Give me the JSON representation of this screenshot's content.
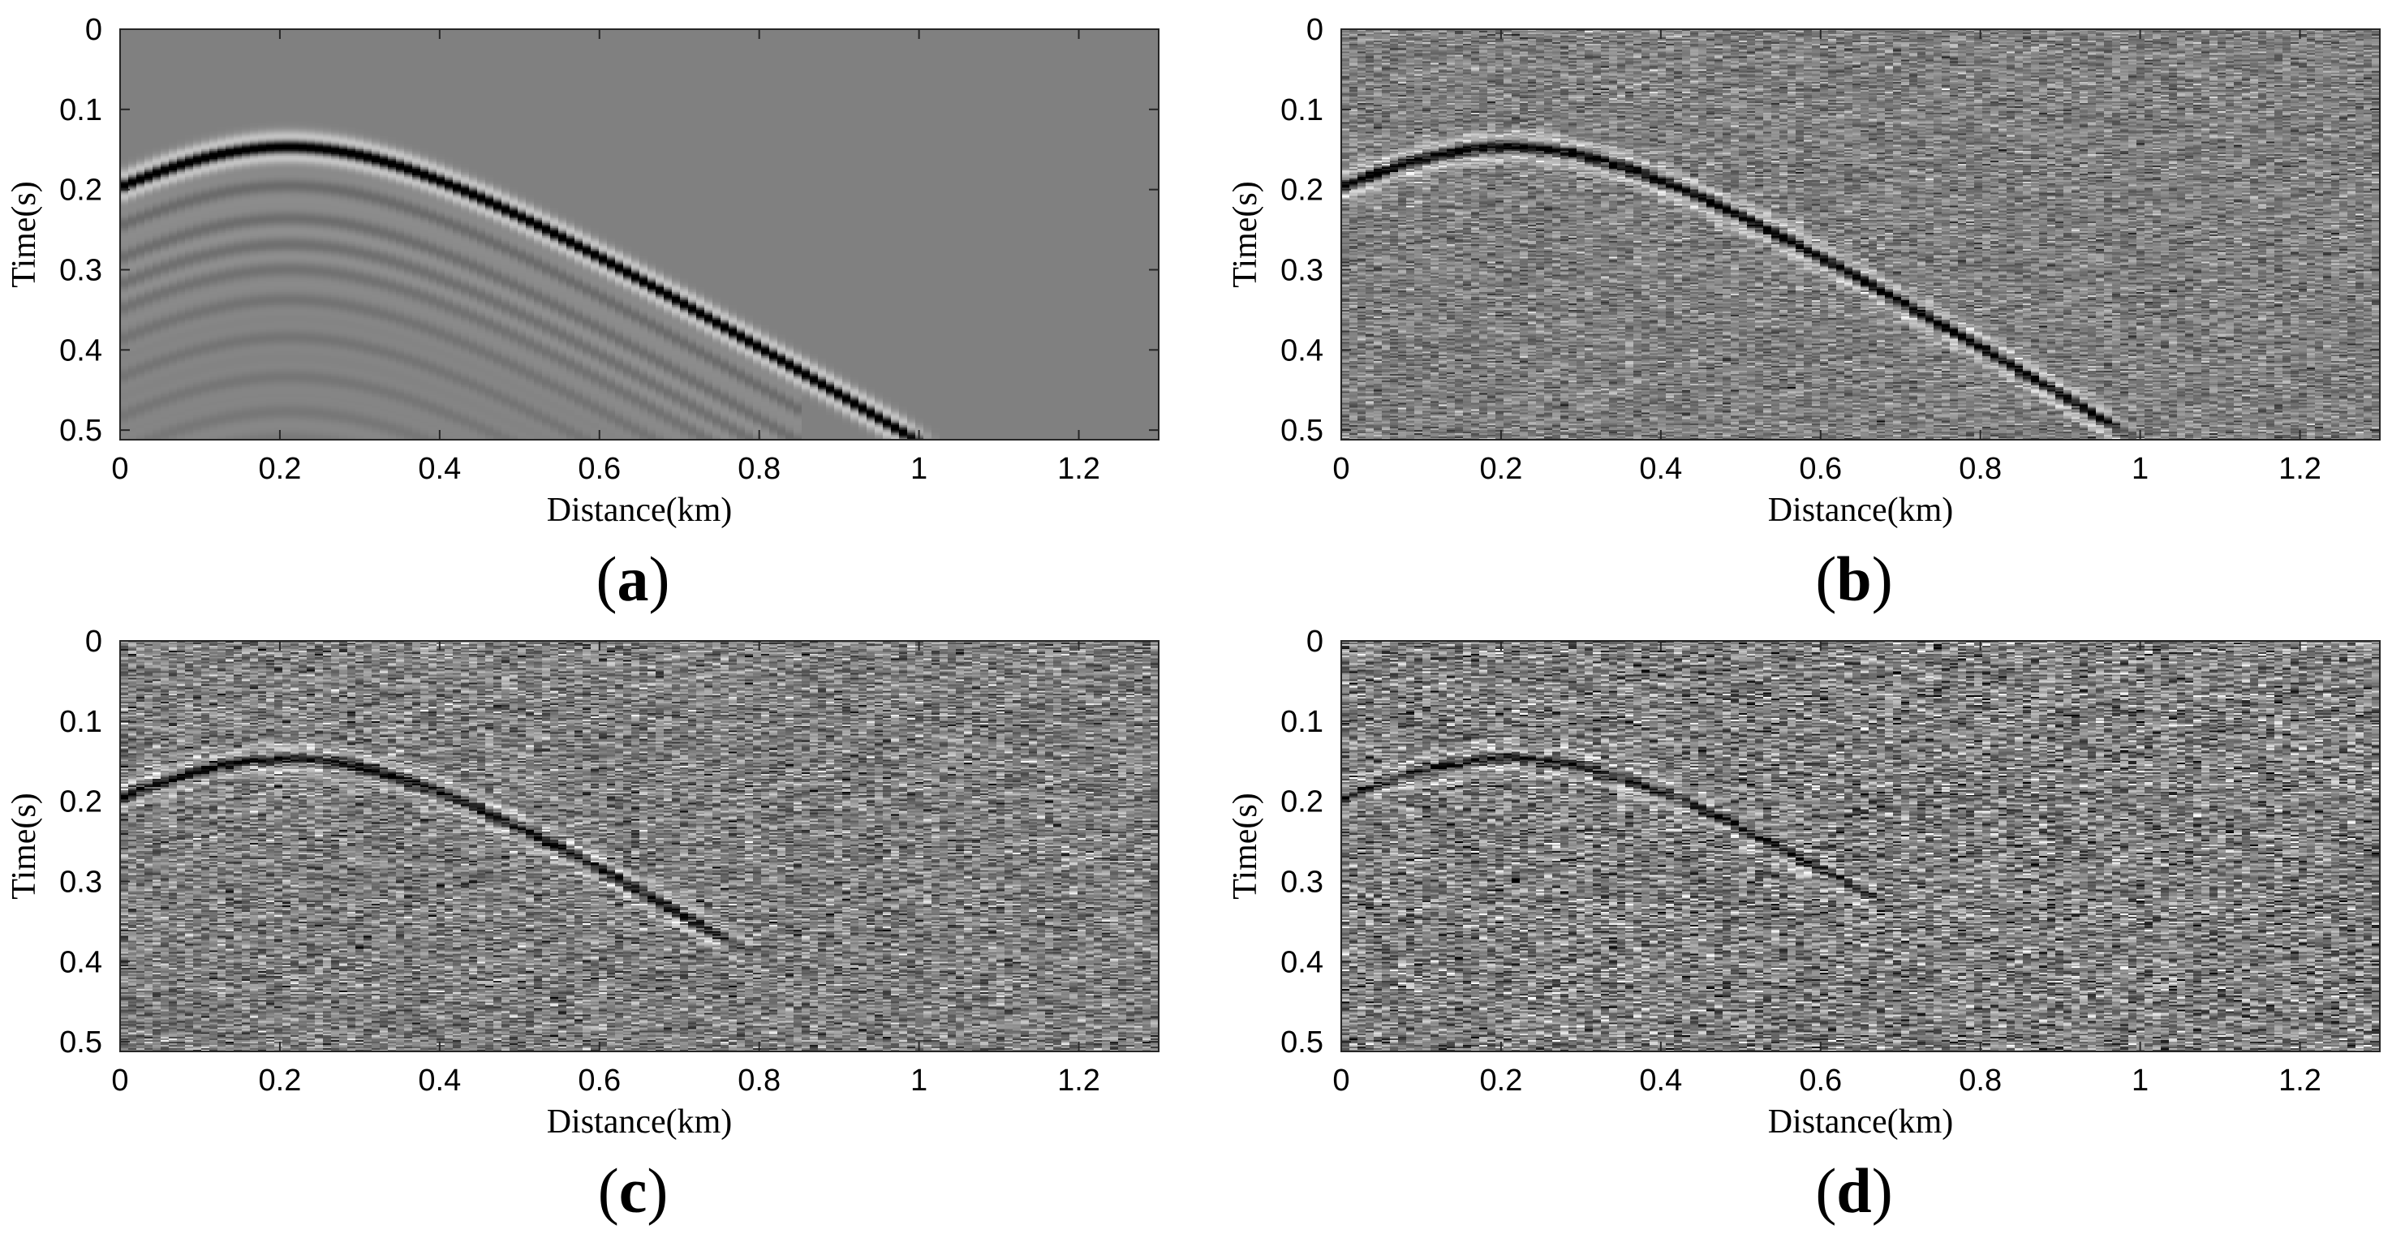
{
  "chart_data": [
    {
      "type": "heatmap",
      "panel_label": "(a)",
      "label_letter": "a",
      "xlabel": "Distance(km)",
      "ylabel": "Time(s)",
      "xlim": [
        0,
        1.3
      ],
      "ylim": [
        0.512,
        0
      ],
      "xticks": [
        "0",
        "0.2",
        "0.4",
        "0.6",
        "0.8",
        "1",
        "1.2"
      ],
      "yticks": [
        "0",
        "0.1",
        "0.2",
        "0.3",
        "0.4",
        "0.5"
      ],
      "colormap": "gray",
      "noise_level": 0.0,
      "event_amplitude": 1.0,
      "event_apex": {
        "x": 0.21,
        "t": 0.147
      },
      "event_visible_to_x": 0.98,
      "secondary_events": true
    },
    {
      "type": "heatmap",
      "panel_label": "(b)",
      "label_letter": "b",
      "xlabel": "Distance(km)",
      "ylabel": "Time(s)",
      "xlim": [
        0,
        1.3
      ],
      "ylim": [
        0.512,
        0
      ],
      "xticks": [
        "0",
        "0.2",
        "0.4",
        "0.6",
        "0.8",
        "1",
        "1.2"
      ],
      "yticks": [
        "0",
        "0.1",
        "0.2",
        "0.3",
        "0.4",
        "0.5"
      ],
      "colormap": "gray",
      "noise_level": 0.55,
      "event_amplitude": 0.9,
      "event_apex": {
        "x": 0.21,
        "t": 0.147
      },
      "event_visible_to_x": 0.95,
      "secondary_events": false
    },
    {
      "type": "heatmap",
      "panel_label": "(c)",
      "label_letter": "c",
      "xlabel": "Distance(km)",
      "ylabel": "Time(s)",
      "xlim": [
        0,
        1.3
      ],
      "ylim": [
        0.512,
        0
      ],
      "xticks": [
        "0",
        "0.2",
        "0.4",
        "0.6",
        "0.8",
        "1",
        "1.2"
      ],
      "yticks": [
        "0",
        "0.1",
        "0.2",
        "0.3",
        "0.4",
        "0.5"
      ],
      "colormap": "gray",
      "noise_level": 0.75,
      "event_amplitude": 0.75,
      "event_apex": {
        "x": 0.21,
        "t": 0.147
      },
      "event_visible_to_x": 0.75,
      "secondary_events": false
    },
    {
      "type": "heatmap",
      "panel_label": "(d)",
      "label_letter": "d",
      "xlabel": "Distance(km)",
      "ylabel": "Time(s)",
      "xlim": [
        0,
        1.3
      ],
      "ylim": [
        0.512,
        0
      ],
      "xticks": [
        "0",
        "0.2",
        "0.4",
        "0.6",
        "0.8",
        "1",
        "1.2"
      ],
      "yticks": [
        "0",
        "0.1",
        "0.2",
        "0.3",
        "0.4",
        "0.5"
      ],
      "colormap": "gray",
      "noise_level": 0.9,
      "event_amplitude": 0.6,
      "event_apex": {
        "x": 0.21,
        "t": 0.147
      },
      "event_visible_to_x": 0.65,
      "secondary_events": false
    }
  ]
}
